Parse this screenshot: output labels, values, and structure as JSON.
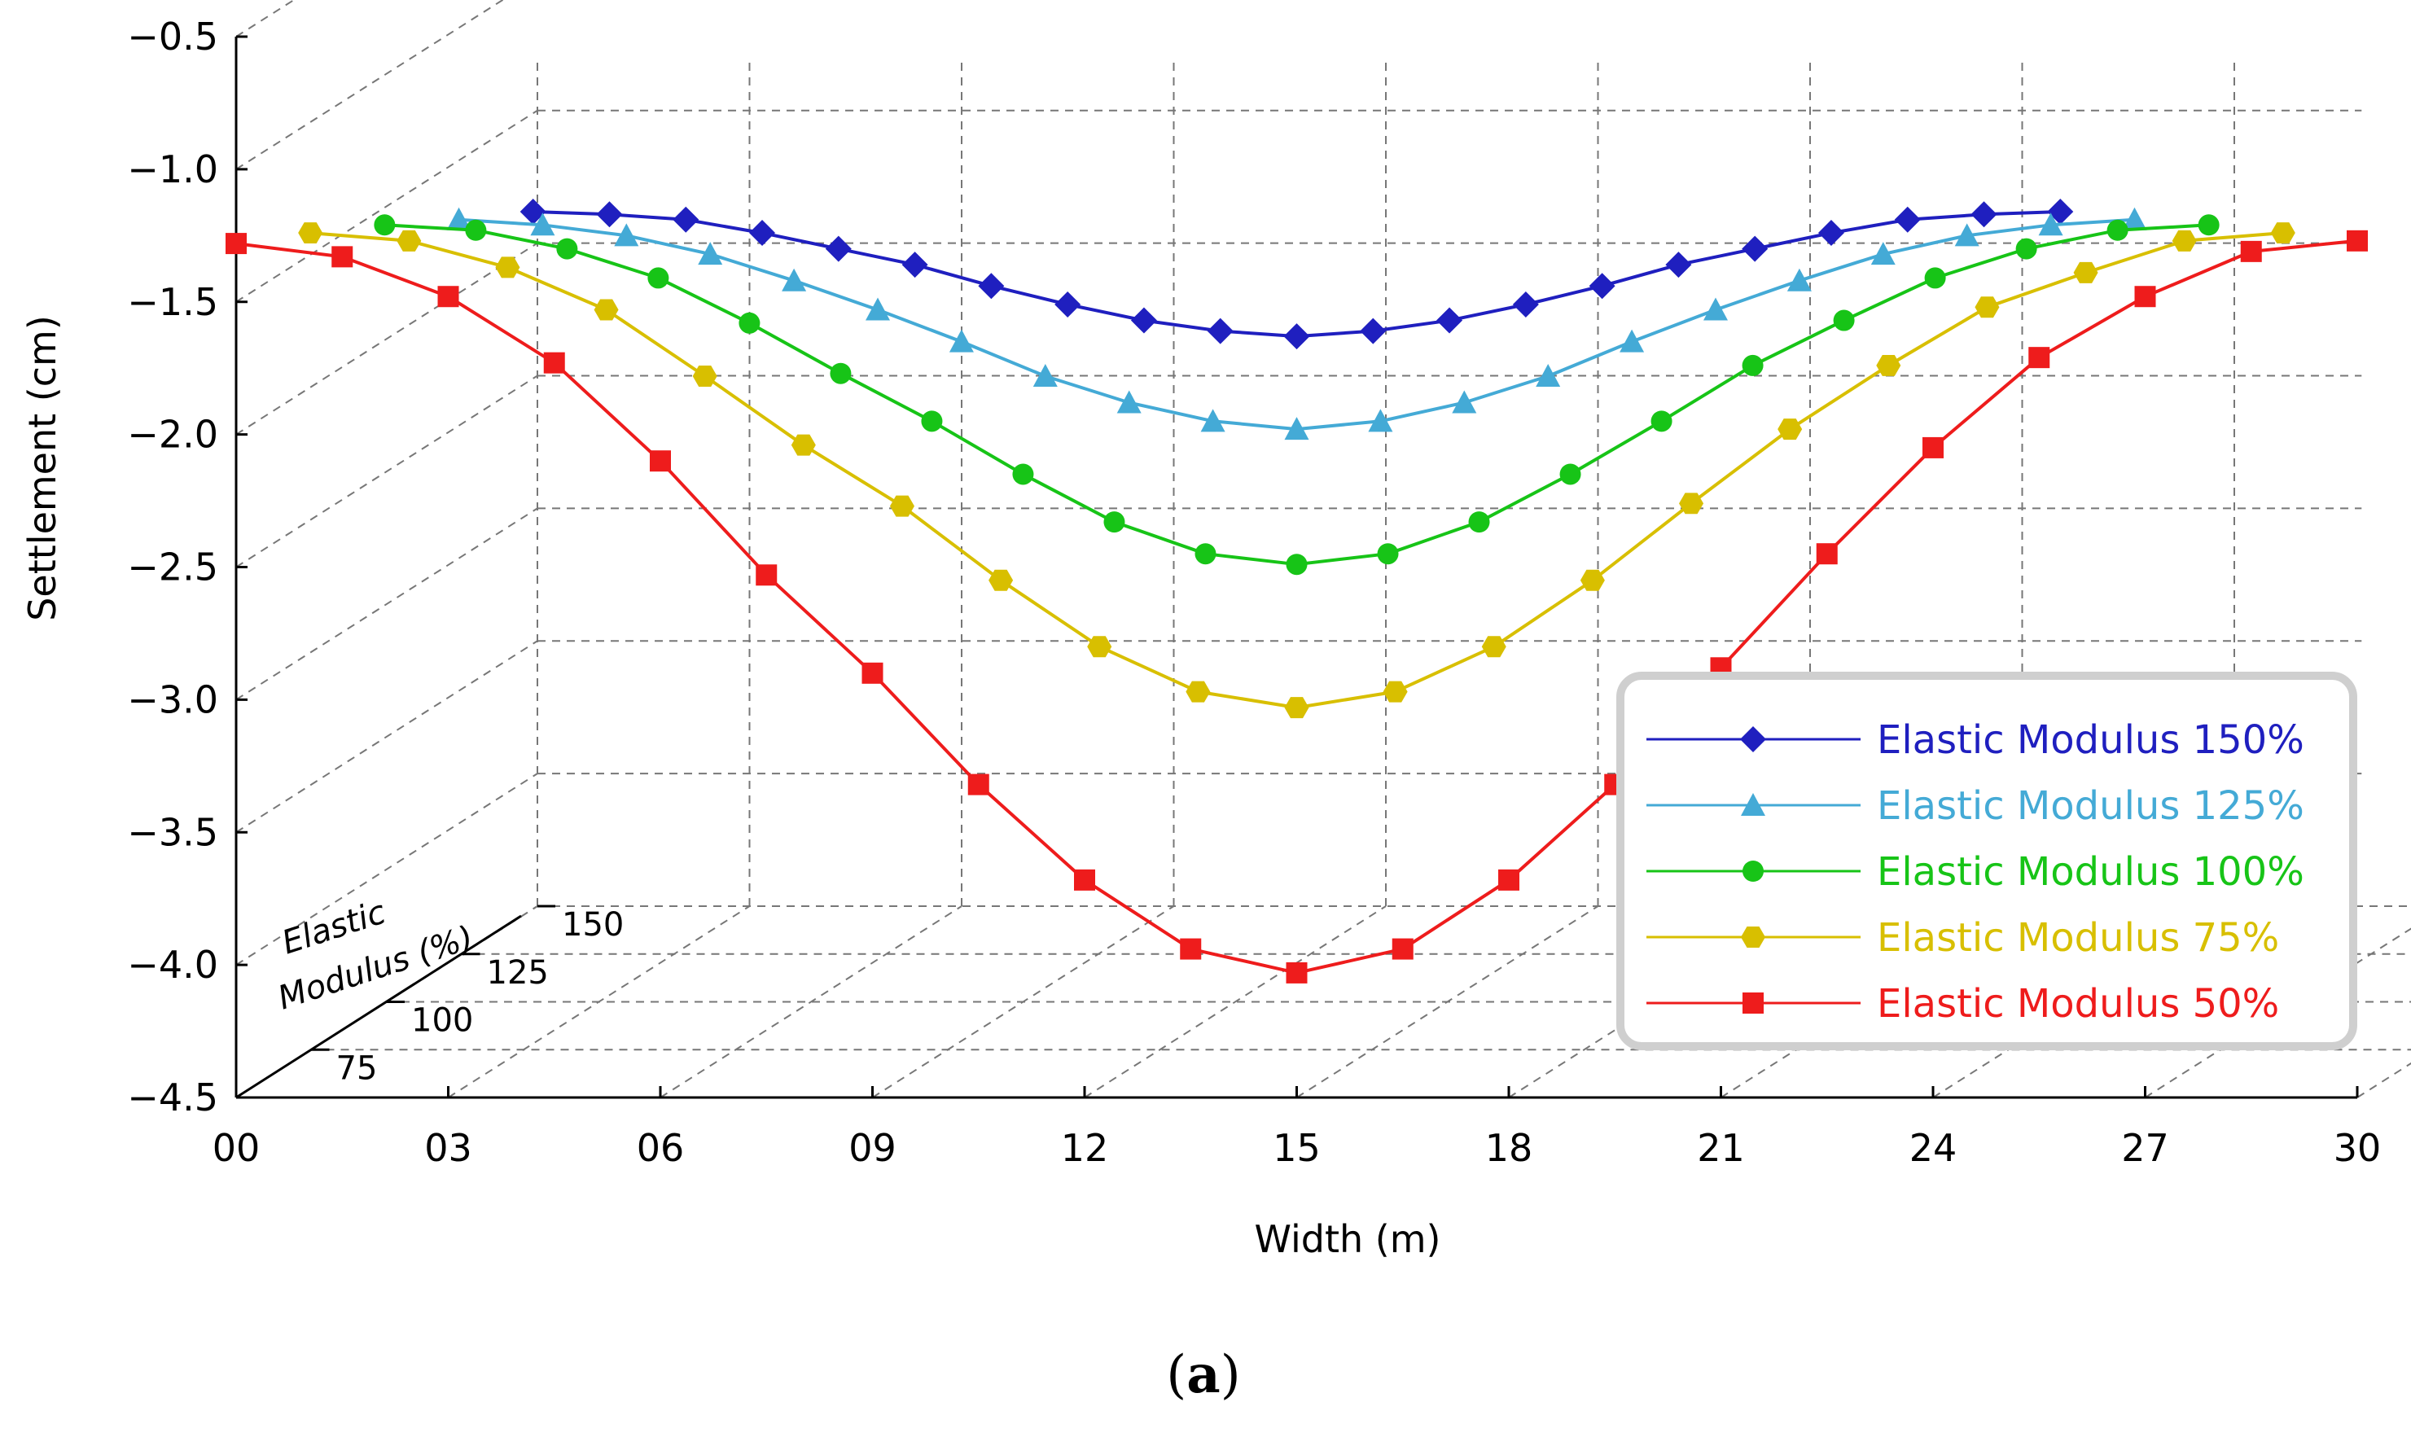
{
  "chart_data": {
    "type": "line",
    "title": "",
    "xlabel": "Width (m)",
    "ylabel": "Settlement (cm)",
    "zlabel": [
      "Elastic",
      "Modulus (%)"
    ],
    "xlim": [
      0,
      30
    ],
    "ylim": [
      -4.5,
      -0.5
    ],
    "x_ticks": [
      "00",
      "03",
      "06",
      "09",
      "12",
      "15",
      "18",
      "21",
      "24",
      "27",
      "30"
    ],
    "y_ticks": [
      "−0.5",
      "−1.0",
      "−1.5",
      "−2.0",
      "−2.5",
      "−3.0",
      "−3.5",
      "−4.0",
      "−4.5"
    ],
    "z_ticks": [
      "75",
      "100",
      "125",
      "150"
    ],
    "grid": true,
    "legend_position": "lower-right",
    "caption": "(a)",
    "caption_letter": "a",
    "x": [
      0,
      1.5,
      3,
      4.5,
      6,
      7.5,
      9,
      10.5,
      12,
      13.5,
      15,
      16.5,
      18,
      19.5,
      21,
      22.5,
      24,
      25.5,
      27,
      28.5,
      30
    ],
    "series": [
      {
        "name": "Elastic Modulus 150%",
        "color": "#1f1fbf",
        "marker": "diamond",
        "depth": 150,
        "values": [
          -1.16,
          -1.17,
          -1.19,
          -1.24,
          -1.3,
          -1.36,
          -1.44,
          -1.51,
          -1.57,
          -1.61,
          -1.63,
          -1.61,
          -1.57,
          -1.51,
          -1.44,
          -1.36,
          -1.3,
          -1.24,
          -1.19,
          -1.17,
          -1.16
        ]
      },
      {
        "name": "Elastic Modulus 125%",
        "color": "#44aad6",
        "marker": "triangle",
        "depth": 125,
        "values": [
          -1.19,
          -1.21,
          -1.25,
          -1.32,
          -1.42,
          -1.53,
          -1.65,
          -1.78,
          -1.88,
          -1.95,
          -1.98,
          -1.95,
          -1.88,
          -1.78,
          -1.65,
          -1.53,
          -1.42,
          -1.32,
          -1.25,
          -1.21,
          -1.19
        ]
      },
      {
        "name": "Elastic Modulus 100%",
        "color": "#17c417",
        "marker": "circle",
        "depth": 100,
        "values": [
          -1.21,
          -1.23,
          -1.3,
          -1.41,
          -1.58,
          -1.77,
          -1.95,
          -2.15,
          -2.33,
          -2.45,
          -2.49,
          -2.45,
          -2.33,
          -2.15,
          -1.95,
          -1.74,
          -1.57,
          -1.41,
          -1.3,
          -1.23,
          -1.21
        ]
      },
      {
        "name": "Elastic Modulus 75%",
        "color": "#d8bf00",
        "marker": "hexagon",
        "depth": 75,
        "values": [
          -1.24,
          -1.27,
          -1.37,
          -1.53,
          -1.78,
          -2.04,
          -2.27,
          -2.55,
          -2.8,
          -2.97,
          -3.03,
          -2.97,
          -2.8,
          -2.55,
          -2.26,
          -1.98,
          -1.74,
          -1.52,
          -1.39,
          -1.27,
          -1.24
        ]
      },
      {
        "name": "Elastic Modulus 50%",
        "color": "#ee1c1c",
        "marker": "square",
        "depth": 50,
        "values": [
          -1.28,
          -1.33,
          -1.48,
          -1.73,
          -2.1,
          -2.53,
          -2.9,
          -3.32,
          -3.68,
          -3.94,
          -4.03,
          -3.94,
          -3.68,
          -3.32,
          -2.88,
          -2.45,
          -2.05,
          -1.71,
          -1.48,
          -1.31,
          -1.27
        ]
      }
    ]
  }
}
